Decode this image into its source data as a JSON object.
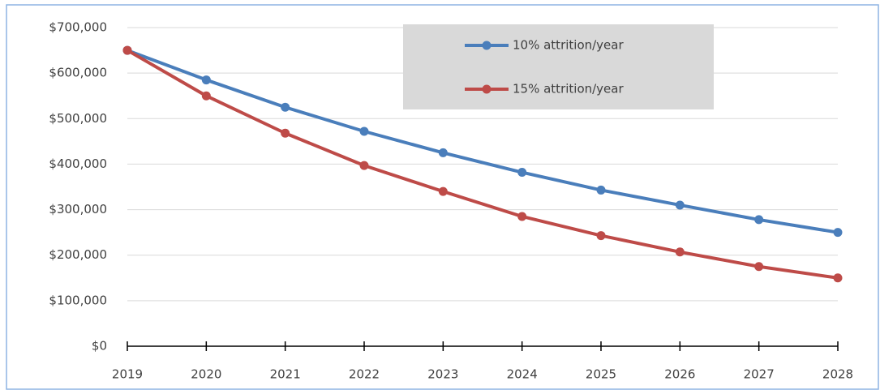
{
  "chart_data": {
    "type": "line",
    "x": [
      2019,
      2020,
      2021,
      2022,
      2023,
      2024,
      2025,
      2026,
      2027,
      2028
    ],
    "xlim": [
      2019,
      2028
    ],
    "xticks": [
      2019,
      2020,
      2021,
      2022,
      2023,
      2024,
      2025,
      2026,
      2027,
      2028
    ],
    "ylim": [
      0,
      700000
    ],
    "yticks": [
      {
        "value": 0,
        "label": "$0"
      },
      {
        "value": 100000,
        "label": "$100,000"
      },
      {
        "value": 200000,
        "label": "$200,000"
      },
      {
        "value": 300000,
        "label": "$300,000"
      },
      {
        "value": 400000,
        "label": "$400,000"
      },
      {
        "value": 500000,
        "label": "$500,000"
      },
      {
        "value": 600000,
        "label": "$600,000"
      },
      {
        "value": 700000,
        "label": "$700,000"
      }
    ],
    "grid": true,
    "legend": "top",
    "series": [
      {
        "name": "10% attrition/year",
        "color": "#4a7ebb",
        "values": [
          650000,
          585000,
          525000,
          472000,
          425000,
          382000,
          343000,
          310000,
          278000,
          250000
        ]
      },
      {
        "name": "15% attrition/year",
        "color": "#be4b48",
        "values": [
          650000,
          550000,
          468000,
          397000,
          340000,
          285000,
          243000,
          207000,
          175000,
          150000
        ]
      }
    ]
  }
}
